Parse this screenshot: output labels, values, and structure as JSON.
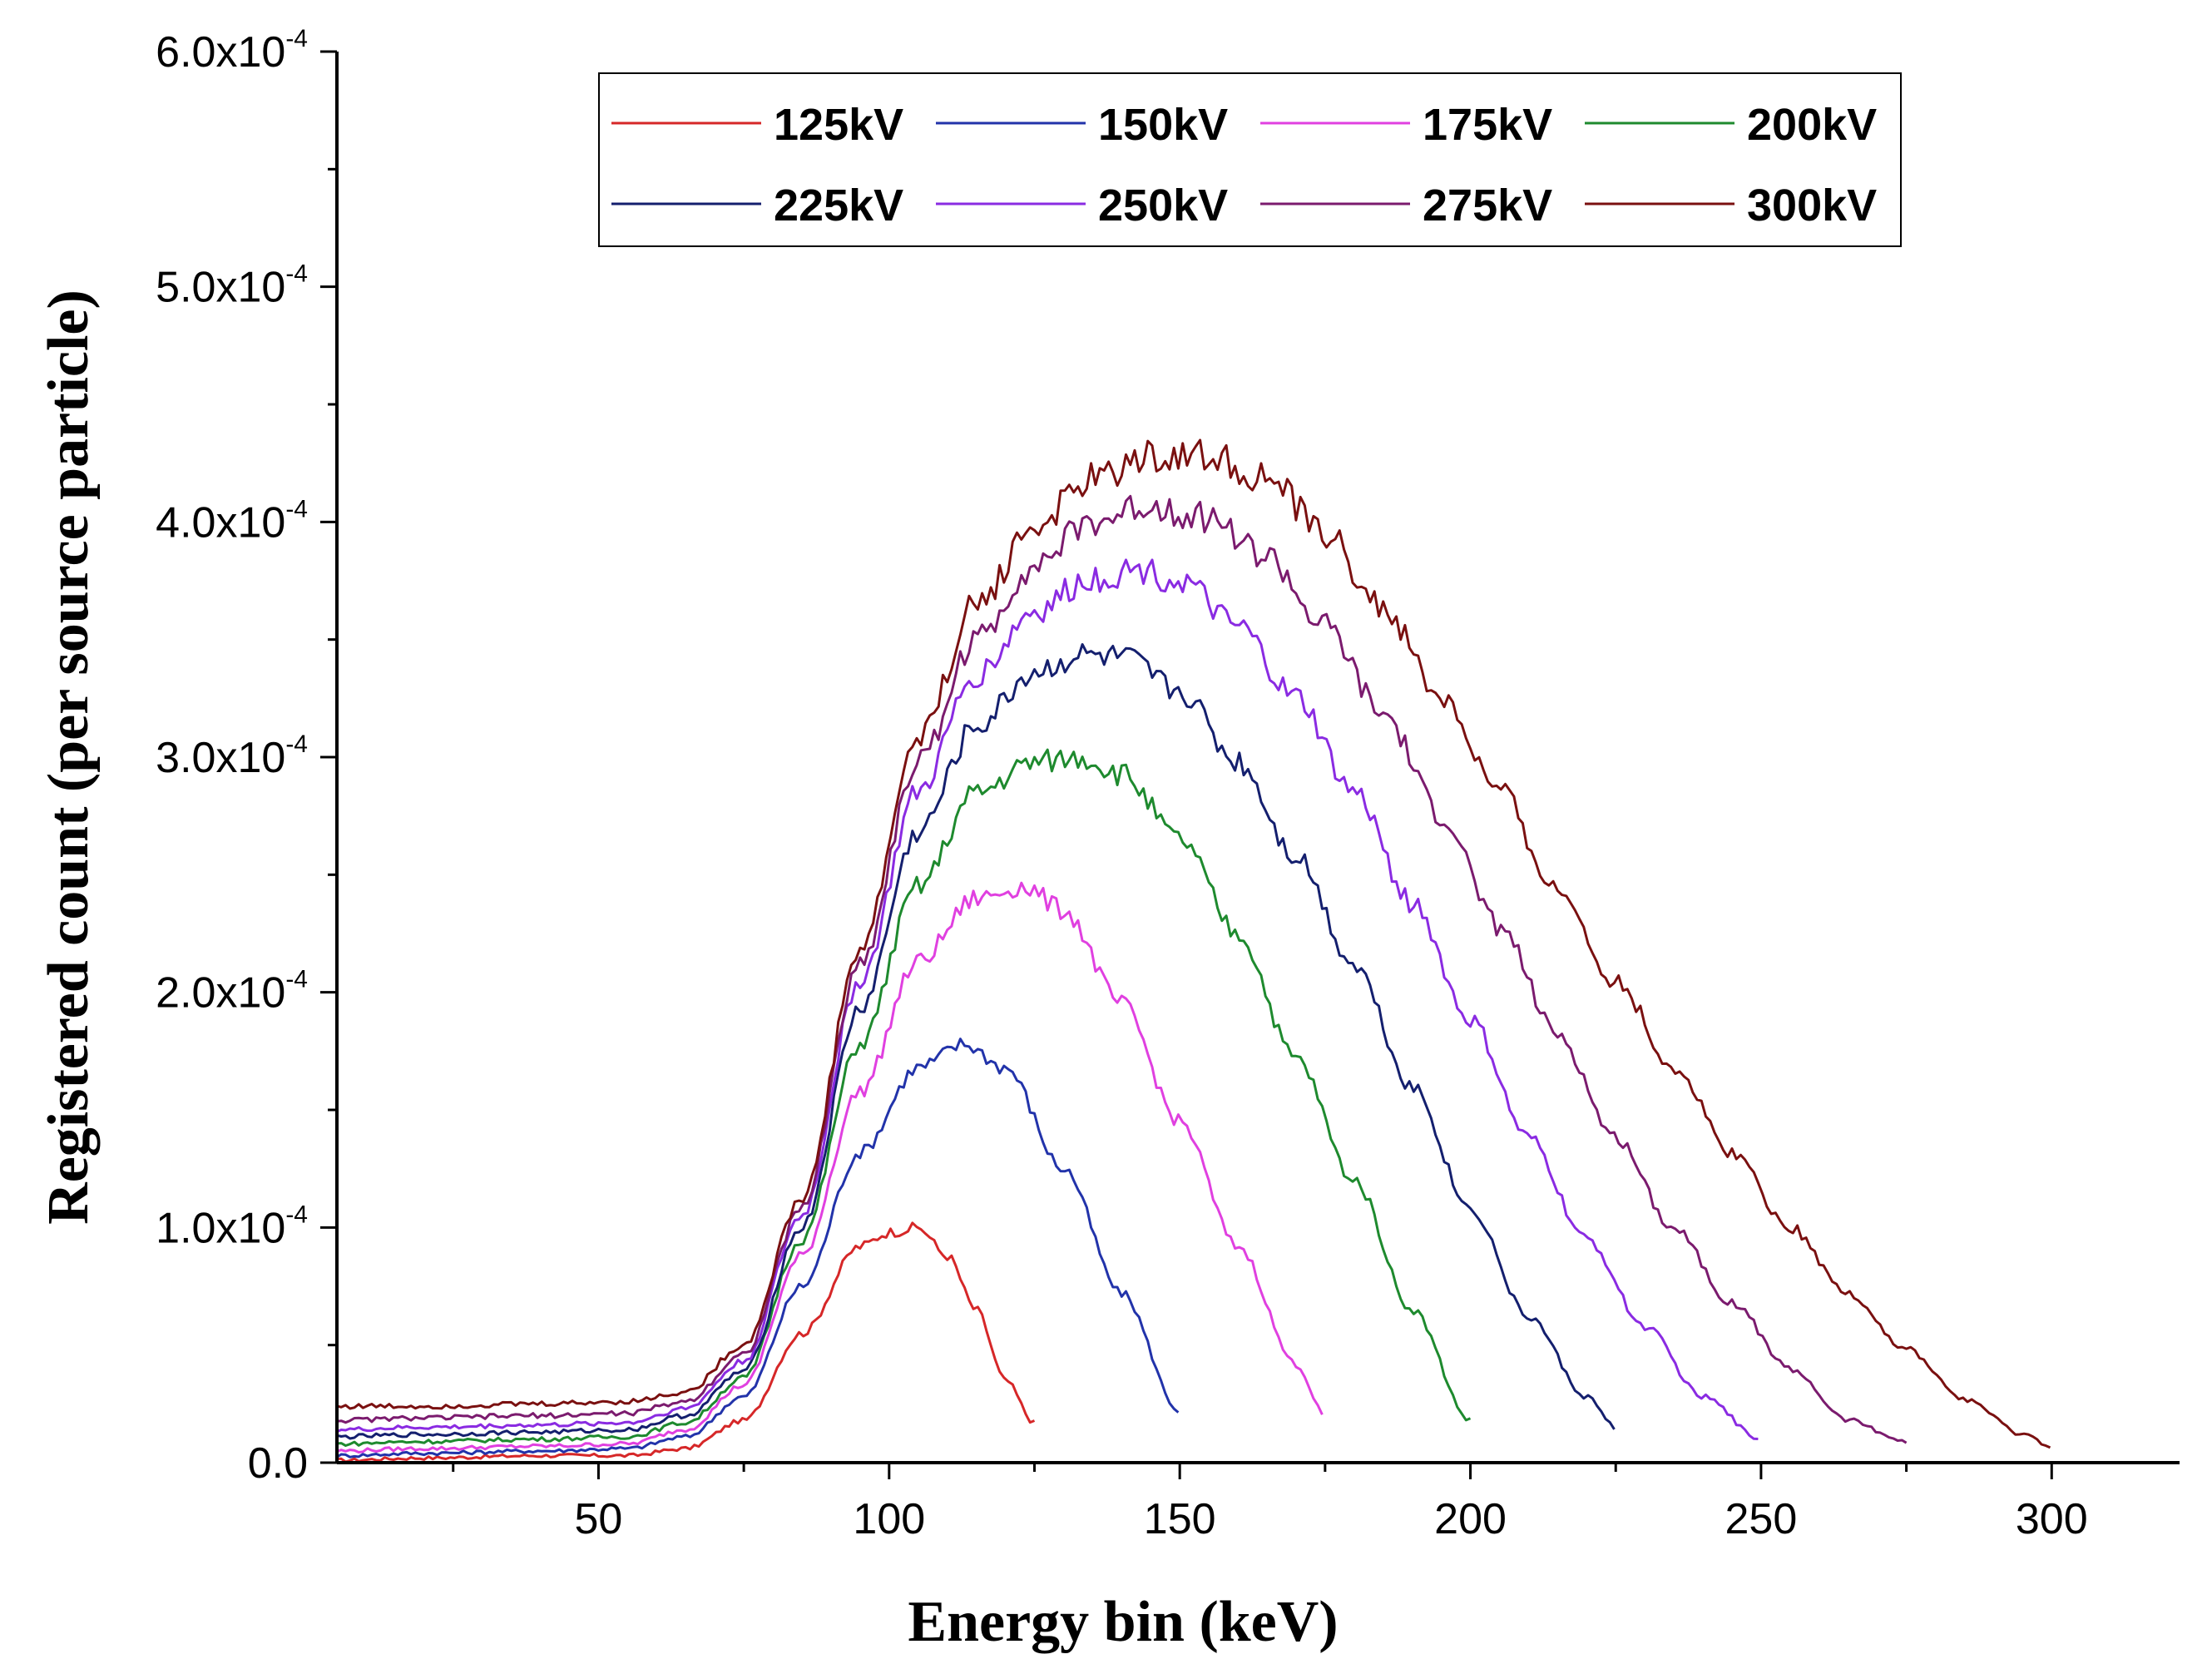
{
  "chart_data": {
    "type": "line",
    "title": "",
    "xlabel": "Energy bin (keV)",
    "ylabel": "Registered count (per source particle)",
    "xlim": [
      5,
      322
    ],
    "ylim": [
      0,
      0.0006
    ],
    "x_ticks": [
      50,
      100,
      150,
      200,
      250,
      300
    ],
    "x_tick_labels": [
      "50",
      "100",
      "150",
      "200",
      "250",
      "300"
    ],
    "y_ticks": [
      0,
      0.0001,
      0.0002,
      0.0003,
      0.0004,
      0.0005,
      0.0006
    ],
    "y_tick_labels": [
      {
        "mantissa": "0.0",
        "exponent": ""
      },
      {
        "mantissa": "1.0x10",
        "exponent": "-4"
      },
      {
        "mantissa": "2.0x10",
        "exponent": "-4"
      },
      {
        "mantissa": "3.0x10",
        "exponent": "-4"
      },
      {
        "mantissa": "4.0x10",
        "exponent": "-4"
      },
      {
        "mantissa": "5.0x10",
        "exponent": "-4"
      },
      {
        "mantissa": "6.0x10",
        "exponent": "-4"
      }
    ],
    "grid": false,
    "legend_position": "top-center",
    "series": [
      {
        "name": "125kV",
        "color": "#d62728",
        "x": [
          5,
          20,
          40,
          55,
          65,
          75,
          85,
          95,
          100,
          105,
          110,
          115,
          120,
          125
        ],
        "y": [
          1e-06,
          2e-06,
          3e-06,
          3e-06,
          6e-06,
          1.8e-05,
          5.5e-05,
          9.2e-05,
          9.8e-05,
          0.0001,
          8.8e-05,
          6.5e-05,
          3.5e-05,
          1.7e-05
        ]
      },
      {
        "name": "150kV",
        "color": "#2233aa",
        "x": [
          5,
          20,
          40,
          55,
          65,
          75,
          85,
          95,
          105,
          113,
          120,
          130,
          140,
          150
        ],
        "y": [
          3e-06,
          4e-06,
          5e-06,
          6e-06,
          1.1e-05,
          2.8e-05,
          7.5e-05,
          0.000132,
          0.000168,
          0.000178,
          0.000168,
          0.000125,
          7.2e-05,
          2.2e-05
        ]
      },
      {
        "name": "175kV",
        "color": "#e040e0",
        "x": [
          5,
          20,
          40,
          55,
          65,
          75,
          85,
          95,
          105,
          115,
          123,
          130,
          140,
          150,
          160,
          170,
          175
        ],
        "y": [
          5e-06,
          6e-06,
          7e-06,
          8e-06,
          1.4e-05,
          3.3e-05,
          8.8e-05,
          0.000158,
          0.000213,
          0.00024,
          0.000245,
          0.000235,
          0.000195,
          0.000145,
          9.2e-05,
          4.2e-05,
          2e-05
        ]
      },
      {
        "name": "200kV",
        "color": "#1e8a2e",
        "x": [
          5,
          20,
          40,
          55,
          65,
          75,
          85,
          95,
          105,
          115,
          125,
          133,
          140,
          150,
          160,
          170,
          180,
          190,
          200
        ],
        "y": [
          8e-06,
          9e-06,
          1e-05,
          1.1e-05,
          1.7e-05,
          3.6e-05,
          9.5e-05,
          0.000178,
          0.000245,
          0.000285,
          0.000298,
          0.0003,
          0.000293,
          0.000265,
          0.000225,
          0.000172,
          0.00012,
          6.5e-05,
          1.8e-05
        ]
      },
      {
        "name": "225kV",
        "color": "#141f6e",
        "x": [
          5,
          20,
          40,
          55,
          65,
          75,
          85,
          95,
          105,
          115,
          125,
          133,
          140,
          150,
          160,
          170,
          180,
          190,
          200,
          210,
          220,
          225
        ],
        "y": [
          1.1e-05,
          1.2e-05,
          1.3e-05,
          1.4e-05,
          2e-05,
          3.9e-05,
          0.0001,
          0.000193,
          0.000268,
          0.000313,
          0.000336,
          0.000343,
          0.000342,
          0.000328,
          0.000298,
          0.000258,
          0.000212,
          0.00016,
          0.000108,
          6.2e-05,
          2.8e-05,
          1.5e-05
        ]
      },
      {
        "name": "250kV",
        "color": "#8a2be2",
        "x": [
          5,
          20,
          40,
          55,
          65,
          75,
          85,
          95,
          105,
          115,
          125,
          135,
          143,
          150,
          160,
          170,
          180,
          190,
          200,
          210,
          220,
          230,
          240,
          250
        ],
        "y": [
          1.4e-05,
          1.5e-05,
          1.6e-05,
          1.7e-05,
          2.3e-05,
          4.3e-05,
          0.000105,
          0.000205,
          0.000285,
          0.000335,
          0.000362,
          0.000376,
          0.00038,
          0.000375,
          0.000355,
          0.000325,
          0.000285,
          0.000238,
          0.000188,
          0.000138,
          9.5e-05,
          5.8e-05,
          2.8e-05,
          1e-05
        ]
      },
      {
        "name": "275kV",
        "color": "#7b1b6e",
        "x": [
          5,
          20,
          40,
          55,
          65,
          75,
          85,
          95,
          105,
          115,
          125,
          135,
          145,
          155,
          165,
          175,
          185,
          195,
          205,
          215,
          225,
          235,
          245,
          255,
          265,
          275
        ],
        "y": [
          1.8e-05,
          1.9e-05,
          2e-05,
          2.1e-05,
          2.6e-05,
          4.6e-05,
          0.000108,
          0.000212,
          0.000298,
          0.00035,
          0.000382,
          0.0004,
          0.000407,
          0.000402,
          0.000385,
          0.000355,
          0.000318,
          0.000275,
          0.000228,
          0.000182,
          0.000138,
          0.0001,
          6.8e-05,
          4e-05,
          1.8e-05,
          9e-06
        ]
      },
      {
        "name": "300kV",
        "color": "#7a1010",
        "x": [
          5,
          20,
          40,
          55,
          65,
          75,
          85,
          95,
          105,
          115,
          125,
          135,
          145,
          155,
          165,
          175,
          185,
          195,
          205,
          215,
          225,
          235,
          245,
          255,
          265,
          275,
          285,
          295,
          300
        ],
        "y": [
          2.4e-05,
          2.4e-05,
          2.5e-05,
          2.6e-05,
          3e-05,
          5e-05,
          0.000112,
          0.000218,
          0.000308,
          0.000365,
          0.000398,
          0.000418,
          0.000428,
          0.000428,
          0.000418,
          0.000395,
          0.000363,
          0.000325,
          0.000285,
          0.000243,
          0.000205,
          0.000168,
          0.000132,
          0.0001,
          7.2e-05,
          4.8e-05,
          2.7e-05,
          1.2e-05,
          7e-06
        ]
      }
    ]
  }
}
